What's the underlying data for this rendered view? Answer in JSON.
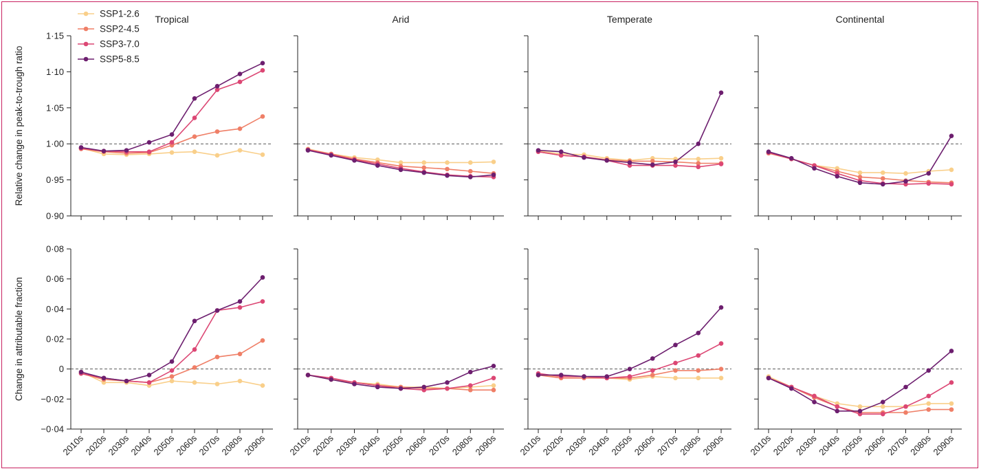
{
  "chart_data": {
    "type": "line",
    "panel_titles": [
      "Tropical",
      "Arid",
      "Temperate",
      "Continental"
    ],
    "categories": [
      "2010s",
      "2020s",
      "2030s",
      "2040s",
      "2050s",
      "2060s",
      "2070s",
      "2080s",
      "2090s"
    ],
    "colors": {
      "SSP1-2.6": "#f9cf8a",
      "SSP2-4.5": "#ef7f67",
      "SSP3-7.0": "#dc4774",
      "SSP5-8.5": "#6d1f6f",
      "frame": "#c8205f",
      "reference_line": "#555555"
    },
    "legend": {
      "placement": "top-left",
      "entries": [
        "SSP1-2.6",
        "SSP2-4.5",
        "SSP3-7.0",
        "SSP5-8.5"
      ]
    },
    "rows": [
      {
        "ylabel": "Relative change in peak-to-trough ratio",
        "ylim": [
          0.9,
          1.15
        ],
        "yticks": [
          0.9,
          0.95,
          1.0,
          1.05,
          1.1,
          1.15
        ],
        "ytick_labels": [
          "0·90",
          "0·95",
          "1·00",
          "1·05",
          "1·10",
          "1·15"
        ],
        "reference": 1.0,
        "panels": [
          {
            "series": [
              {
                "name": "SSP1-2.6",
                "values": [
                  0.994,
                  0.986,
                  0.985,
                  0.986,
                  0.988,
                  0.989,
                  0.984,
                  0.991,
                  0.985
                ]
              },
              {
                "name": "SSP2-4.5",
                "values": [
                  0.993,
                  0.989,
                  0.987,
                  0.988,
                  0.998,
                  1.01,
                  1.017,
                  1.021,
                  1.038
                ]
              },
              {
                "name": "SSP3-7.0",
                "values": [
                  0.994,
                  0.99,
                  0.989,
                  0.989,
                  1.002,
                  1.036,
                  1.075,
                  1.086,
                  1.102
                ]
              },
              {
                "name": "SSP5-8.5",
                "values": [
                  0.995,
                  0.99,
                  0.991,
                  1.002,
                  1.013,
                  1.063,
                  1.08,
                  1.097,
                  1.112
                ]
              }
            ]
          },
          {
            "series": [
              {
                "name": "SSP1-2.6",
                "values": [
                  0.993,
                  0.986,
                  0.981,
                  0.978,
                  0.974,
                  0.974,
                  0.974,
                  0.974,
                  0.975
                ]
              },
              {
                "name": "SSP2-4.5",
                "values": [
                  0.992,
                  0.986,
                  0.979,
                  0.974,
                  0.969,
                  0.967,
                  0.965,
                  0.962,
                  0.959
                ]
              },
              {
                "name": "SSP3-7.0",
                "values": [
                  0.992,
                  0.985,
                  0.978,
                  0.972,
                  0.966,
                  0.961,
                  0.957,
                  0.955,
                  0.954
                ]
              },
              {
                "name": "SSP5-8.5",
                "values": [
                  0.991,
                  0.984,
                  0.977,
                  0.97,
                  0.964,
                  0.96,
                  0.956,
                  0.954,
                  0.957
                ]
              }
            ]
          },
          {
            "series": [
              {
                "name": "SSP1-2.6",
                "values": [
                  0.99,
                  0.986,
                  0.985,
                  0.98,
                  0.977,
                  0.98,
                  0.979,
                  0.979,
                  0.98
                ]
              },
              {
                "name": "SSP2-4.5",
                "values": [
                  0.989,
                  0.984,
                  0.982,
                  0.978,
                  0.976,
                  0.976,
                  0.975,
                  0.973,
                  0.973
                ]
              },
              {
                "name": "SSP3-7.0",
                "values": [
                  0.989,
                  0.984,
                  0.982,
                  0.977,
                  0.97,
                  0.97,
                  0.97,
                  0.968,
                  0.972
                ]
              },
              {
                "name": "SSP5-8.5",
                "values": [
                  0.991,
                  0.989,
                  0.981,
                  0.977,
                  0.974,
                  0.971,
                  0.975,
                  1.0,
                  1.071
                ]
              }
            ]
          },
          {
            "series": [
              {
                "name": "SSP1-2.6",
                "values": [
                  0.987,
                  0.979,
                  0.97,
                  0.966,
                  0.96,
                  0.96,
                  0.959,
                  0.962,
                  0.964
                ]
              },
              {
                "name": "SSP2-4.5",
                "values": [
                  0.987,
                  0.979,
                  0.97,
                  0.962,
                  0.954,
                  0.952,
                  0.949,
                  0.947,
                  0.946
                ]
              },
              {
                "name": "SSP3-7.0",
                "values": [
                  0.988,
                  0.979,
                  0.97,
                  0.959,
                  0.949,
                  0.945,
                  0.944,
                  0.945,
                  0.944
                ]
              },
              {
                "name": "SSP5-8.5",
                "values": [
                  0.989,
                  0.98,
                  0.966,
                  0.955,
                  0.946,
                  0.944,
                  0.948,
                  0.959,
                  1.011
                ]
              }
            ]
          }
        ]
      },
      {
        "ylabel": "Change in attributable fraction",
        "ylim": [
          -0.04,
          0.08
        ],
        "yticks": [
          -0.04,
          -0.02,
          0,
          0.02,
          0.04,
          0.06,
          0.08
        ],
        "ytick_labels": [
          "−0·04",
          "−0·02",
          "0",
          "0·02",
          "0·04",
          "0·06",
          "0·08"
        ],
        "reference": 0,
        "panels": [
          {
            "series": [
              {
                "name": "SSP1-2.6",
                "values": [
                  -0.002,
                  -0.009,
                  -0.009,
                  -0.011,
                  -0.008,
                  -0.009,
                  -0.01,
                  -0.008,
                  -0.011
                ]
              },
              {
                "name": "SSP2-4.5",
                "values": [
                  -0.003,
                  -0.007,
                  -0.008,
                  -0.009,
                  -0.005,
                  0.001,
                  0.008,
                  0.01,
                  0.019
                ]
              },
              {
                "name": "SSP3-7.0",
                "values": [
                  -0.003,
                  -0.006,
                  -0.008,
                  -0.009,
                  -0.001,
                  0.013,
                  0.039,
                  0.041,
                  0.045
                ]
              },
              {
                "name": "SSP5-8.5",
                "values": [
                  -0.002,
                  -0.006,
                  -0.008,
                  -0.004,
                  0.005,
                  0.032,
                  0.039,
                  0.045,
                  0.061
                ]
              }
            ]
          },
          {
            "series": [
              {
                "name": "SSP1-2.6",
                "values": [
                  -0.004,
                  -0.007,
                  -0.009,
                  -0.01,
                  -0.012,
                  -0.012,
                  -0.013,
                  -0.012,
                  -0.011
                ]
              },
              {
                "name": "SSP2-4.5",
                "values": [
                  -0.004,
                  -0.007,
                  -0.009,
                  -0.011,
                  -0.012,
                  -0.013,
                  -0.013,
                  -0.014,
                  -0.014
                ]
              },
              {
                "name": "SSP3-7.0",
                "values": [
                  -0.004,
                  -0.006,
                  -0.009,
                  -0.011,
                  -0.013,
                  -0.014,
                  -0.013,
                  -0.011,
                  -0.006
                ]
              },
              {
                "name": "SSP5-8.5",
                "values": [
                  -0.004,
                  -0.007,
                  -0.01,
                  -0.012,
                  -0.013,
                  -0.012,
                  -0.009,
                  -0.002,
                  0.002
                ]
              }
            ]
          },
          {
            "series": [
              {
                "name": "SSP1-2.6",
                "values": [
                  -0.004,
                  -0.005,
                  -0.005,
                  -0.006,
                  -0.007,
                  -0.005,
                  -0.006,
                  -0.006,
                  -0.006
                ]
              },
              {
                "name": "SSP2-4.5",
                "values": [
                  -0.004,
                  -0.006,
                  -0.006,
                  -0.006,
                  -0.006,
                  -0.004,
                  -0.001,
                  -0.001,
                  0.0
                ]
              },
              {
                "name": "SSP3-7.0",
                "values": [
                  -0.003,
                  -0.005,
                  -0.005,
                  -0.006,
                  -0.005,
                  -0.001,
                  0.004,
                  0.009,
                  0.017
                ]
              },
              {
                "name": "SSP5-8.5",
                "values": [
                  -0.004,
                  -0.004,
                  -0.005,
                  -0.005,
                  0.0,
                  0.007,
                  0.016,
                  0.024,
                  0.041
                ]
              }
            ]
          },
          {
            "series": [
              {
                "name": "SSP1-2.6",
                "values": [
                  -0.005,
                  -0.012,
                  -0.018,
                  -0.023,
                  -0.025,
                  -0.025,
                  -0.025,
                  -0.023,
                  -0.023
                ]
              },
              {
                "name": "SSP2-4.5",
                "values": [
                  -0.006,
                  -0.012,
                  -0.019,
                  -0.025,
                  -0.029,
                  -0.029,
                  -0.029,
                  -0.027,
                  -0.027
                ]
              },
              {
                "name": "SSP3-7.0",
                "values": [
                  -0.006,
                  -0.012,
                  -0.018,
                  -0.025,
                  -0.03,
                  -0.03,
                  -0.025,
                  -0.018,
                  -0.009
                ]
              },
              {
                "name": "SSP5-8.5",
                "values": [
                  -0.006,
                  -0.013,
                  -0.022,
                  -0.028,
                  -0.028,
                  -0.022,
                  -0.012,
                  -0.001,
                  0.012
                ]
              }
            ]
          }
        ]
      }
    ]
  }
}
